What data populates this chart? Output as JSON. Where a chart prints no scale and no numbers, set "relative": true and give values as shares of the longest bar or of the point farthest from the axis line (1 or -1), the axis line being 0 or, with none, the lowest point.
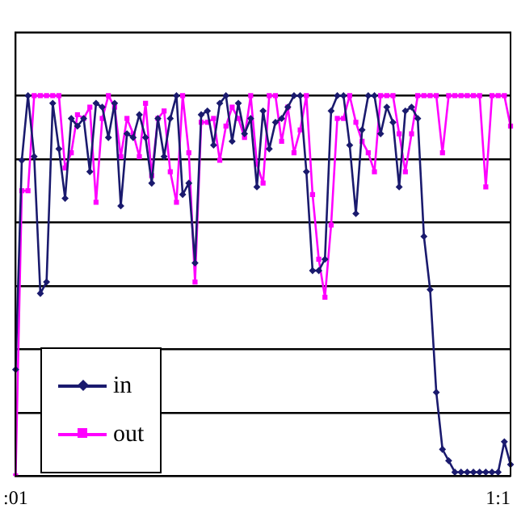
{
  "chart_data": {
    "type": "line",
    "relative": true,
    "grid": "y",
    "legend": "bottom left",
    "categories": [
      ":01",
      null,
      null,
      null,
      null,
      null,
      null,
      null,
      null,
      null,
      null,
      null,
      null,
      null,
      null,
      null,
      null,
      null,
      null,
      null,
      null,
      null,
      null,
      null,
      null,
      null,
      null,
      null,
      null,
      null,
      null,
      null,
      null,
      null,
      null,
      null,
      null,
      null,
      null,
      null,
      null,
      null,
      null,
      null,
      null,
      null,
      null,
      null,
      null,
      null,
      null,
      null,
      null,
      null,
      null,
      null,
      null,
      null,
      null,
      null,
      null,
      null,
      null,
      null,
      null,
      null,
      null,
      null,
      null,
      null,
      null,
      null,
      null,
      null,
      null,
      null,
      null,
      null,
      "1:1",
      null,
      null
    ],
    "series": [
      {
        "name": "in",
        "color": "#1a1a6e",
        "marker": "diamond",
        "values": [
          0.28,
          0.83,
          1,
          0.84,
          0.48,
          0.51,
          0.98,
          0.86,
          0.73,
          0.94,
          0.92,
          0.94,
          0.8,
          0.98,
          0.97,
          0.89,
          0.98,
          0.71,
          0.9,
          0.89,
          0.95,
          0.89,
          0.77,
          0.94,
          0.84,
          0.94,
          1,
          0.74,
          0.77,
          0.56,
          0.95,
          0.96,
          0.87,
          0.98,
          1,
          0.88,
          0.98,
          0.9,
          0.94,
          0.76,
          0.96,
          0.86,
          0.93,
          0.94,
          0.97,
          1,
          1,
          0.8,
          0.54,
          0.54,
          0.57,
          0.96,
          1,
          1,
          0.87,
          0.69,
          0.91,
          1,
          1,
          0.9,
          0.97,
          0.93,
          0.76,
          0.96,
          0.97,
          0.94,
          0.63,
          0.49,
          0.22,
          0.07,
          0.04,
          0.01,
          0.01,
          0.01,
          0.01,
          0.01,
          0.01,
          0.01,
          0.01,
          0.09,
          0.03
        ]
      },
      {
        "name": "out",
        "color": "#ff00ff",
        "marker": "square",
        "values": [
          0,
          0.75,
          0.75,
          1,
          1,
          1,
          1,
          1,
          0.81,
          0.85,
          0.95,
          0.94,
          0.97,
          0.72,
          0.94,
          1,
          0.97,
          0.84,
          0.94,
          0.9,
          0.84,
          0.98,
          0.79,
          0.94,
          0.96,
          0.8,
          0.72,
          1,
          0.85,
          0.51,
          0.93,
          0.93,
          0.94,
          0.83,
          0.92,
          0.97,
          0.94,
          0.89,
          1,
          0.82,
          0.77,
          1,
          1,
          0.88,
          0.97,
          0.85,
          0.91,
          1,
          0.74,
          0.57,
          0.47,
          0.66,
          0.94,
          0.94,
          1,
          0.93,
          0.88,
          0.85,
          0.8,
          1,
          1,
          1,
          0.9,
          0.8,
          0.9,
          1,
          1,
          1,
          1,
          0.85,
          1,
          1,
          1,
          1,
          1,
          1,
          0.76,
          1,
          1,
          1,
          0.92
        ]
      }
    ]
  }
}
